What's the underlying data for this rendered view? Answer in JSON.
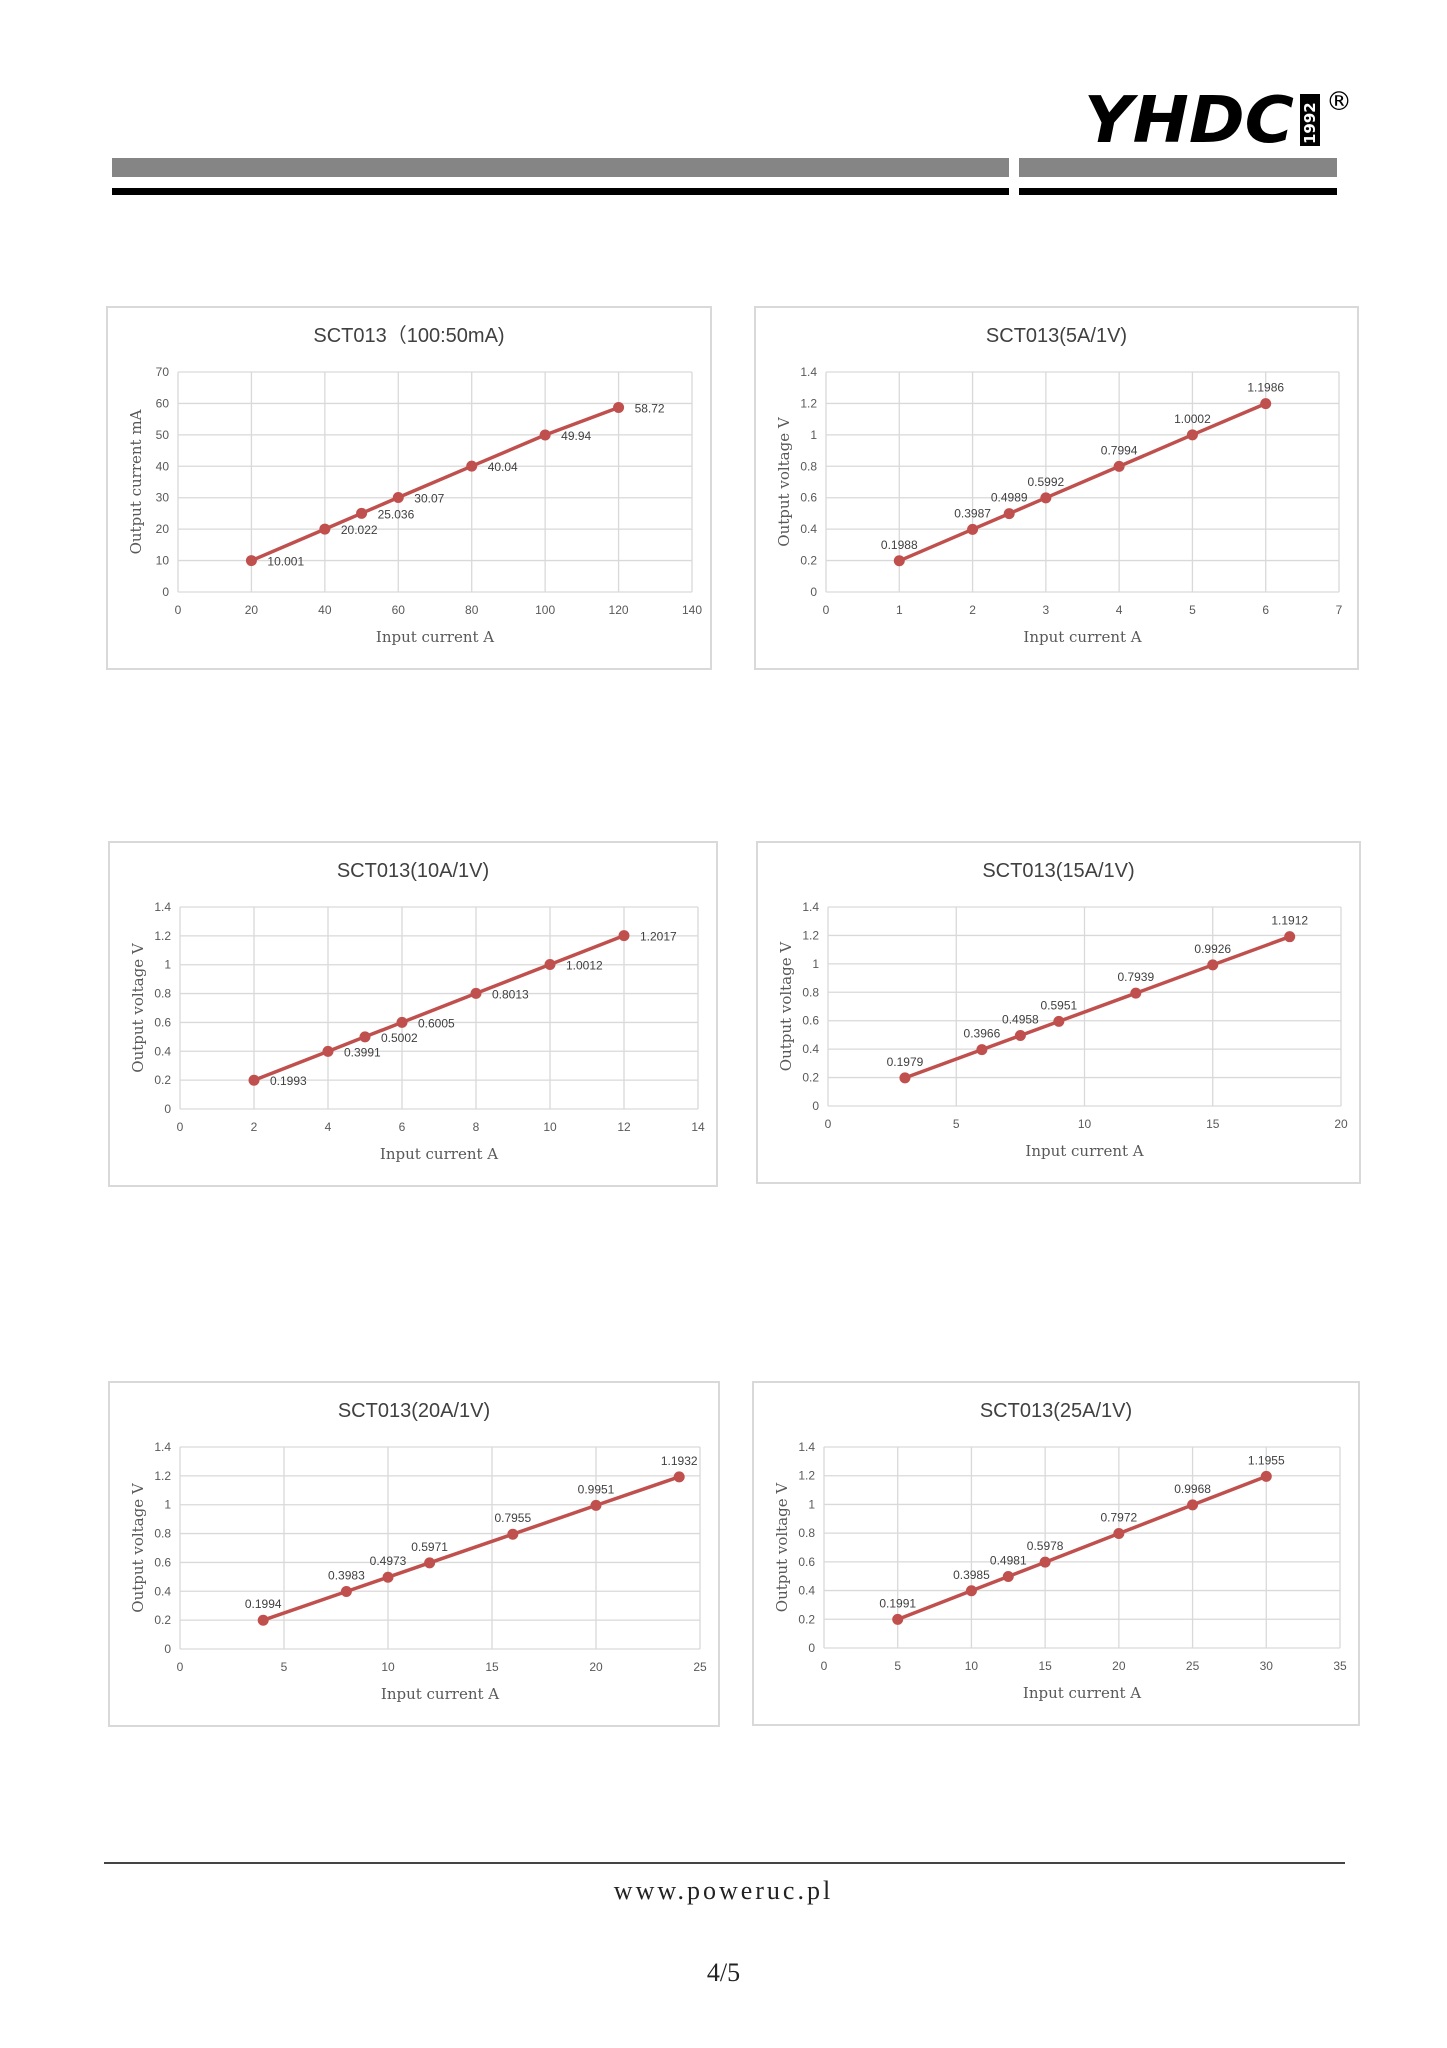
{
  "header": {
    "logo_text": "YHDC",
    "logo_year": "1992",
    "registered_mark": "®"
  },
  "footer": {
    "url": "www.poweruc.pl",
    "page": "4/5"
  },
  "colors": {
    "series": "#c0504d",
    "grid": "#d9d9d9",
    "axis_text": "#595959",
    "title_text": "#404040",
    "band_gray": "#858585",
    "band_black": "#000000"
  },
  "chart_data": [
    {
      "type": "line",
      "title": "SCT013（100:50mA)",
      "xlabel": "Input current  A",
      "ylabel": "Output current  mA",
      "xlim": [
        0,
        140
      ],
      "ylim": [
        0,
        70
      ],
      "xticks": [
        0,
        20,
        40,
        60,
        80,
        100,
        120,
        140
      ],
      "yticks": [
        0,
        10,
        20,
        30,
        40,
        50,
        60,
        70
      ],
      "grid": true,
      "x": [
        20,
        40,
        50,
        60,
        80,
        100,
        120
      ],
      "y": [
        10.001,
        20.022,
        25.036,
        30.07,
        40.04,
        49.94,
        58.72
      ],
      "data_labels": [
        "10.001",
        "20.022",
        "25.036",
        "30.07",
        "40.04",
        "49.94",
        "58.72"
      ],
      "label_position": "right"
    },
    {
      "type": "line",
      "title": "SCT013(5A/1V)",
      "xlabel": "Input current  A",
      "ylabel": "Output voltage  V",
      "xlim": [
        0,
        7
      ],
      "ylim": [
        0,
        1.4
      ],
      "xticks": [
        0,
        1,
        2,
        3,
        4,
        5,
        6,
        7
      ],
      "yticks": [
        0,
        0.2,
        0.4,
        0.6,
        0.8,
        1,
        1.2,
        1.4
      ],
      "grid": true,
      "x": [
        1,
        2,
        2.5,
        3,
        4,
        5,
        6
      ],
      "y": [
        0.1988,
        0.3987,
        0.4989,
        0.5992,
        0.7994,
        1.0002,
        1.1986
      ],
      "data_labels": [
        "0.1988",
        "0.3987",
        "0.4989",
        "0.5992",
        "0.7994",
        "1.0002",
        "1.1986"
      ],
      "label_position": "above"
    },
    {
      "type": "line",
      "title": "SCT013(10A/1V)",
      "xlabel": "Input current  A",
      "ylabel": "Output voltage  V",
      "xlim": [
        0,
        14
      ],
      "ylim": [
        0,
        1.4
      ],
      "xticks": [
        0,
        2,
        4,
        6,
        8,
        10,
        12,
        14
      ],
      "yticks": [
        0,
        0.2,
        0.4,
        0.6,
        0.8,
        1,
        1.2,
        1.4
      ],
      "grid": true,
      "x": [
        2,
        4,
        5,
        6,
        8,
        10,
        12
      ],
      "y": [
        0.1993,
        0.3991,
        0.5002,
        0.6005,
        0.8013,
        1.0012,
        1.2017
      ],
      "data_labels": [
        "0.1993",
        "0.3991",
        "0.5002",
        "0.6005",
        "0.8013",
        "1.0012",
        "1.2017"
      ],
      "label_position": "right"
    },
    {
      "type": "line",
      "title": "SCT013(15A/1V)",
      "xlabel": "Input current  A",
      "ylabel": "Output voltage  V",
      "xlim": [
        0,
        20
      ],
      "ylim": [
        0,
        1.4
      ],
      "xticks": [
        0,
        5,
        10,
        15,
        20
      ],
      "yticks": [
        0,
        0.2,
        0.4,
        0.6,
        0.8,
        1,
        1.2,
        1.4
      ],
      "grid": true,
      "x": [
        3,
        6,
        7.5,
        9,
        12,
        15,
        18
      ],
      "y": [
        0.1979,
        0.3966,
        0.4958,
        0.5951,
        0.7939,
        0.9926,
        1.1912
      ],
      "data_labels": [
        "0.1979",
        "0.3966",
        "0.4958",
        "0.5951",
        "0.7939",
        "0.9926",
        "1.1912"
      ],
      "label_position": "above"
    },
    {
      "type": "line",
      "title": "SCT013(20A/1V)",
      "xlabel": "Input current  A",
      "ylabel": "Output voltage  V",
      "xlim": [
        0,
        25
      ],
      "ylim": [
        0,
        1.4
      ],
      "xticks": [
        0,
        5,
        10,
        15,
        20,
        25
      ],
      "yticks": [
        0,
        0.2,
        0.4,
        0.6,
        0.8,
        1,
        1.2,
        1.4
      ],
      "grid": true,
      "x": [
        4,
        8,
        10,
        12,
        16,
        20,
        24
      ],
      "y": [
        0.1994,
        0.3983,
        0.4973,
        0.5971,
        0.7955,
        0.9951,
        1.1932
      ],
      "data_labels": [
        "0.1994",
        "0.3983",
        "0.4973",
        "0.5971",
        "0.7955",
        "0.9951",
        "1.1932"
      ],
      "label_position": "above"
    },
    {
      "type": "line",
      "title": "SCT013(25A/1V)",
      "xlabel": "Input current  A",
      "ylabel": "Output voltage  V",
      "xlim": [
        0,
        35
      ],
      "ylim": [
        0,
        1.4
      ],
      "xticks": [
        0,
        5,
        10,
        15,
        20,
        25,
        30,
        35
      ],
      "yticks": [
        0,
        0.2,
        0.4,
        0.6,
        0.8,
        1,
        1.2,
        1.4
      ],
      "grid": true,
      "x": [
        5,
        10,
        12.5,
        15,
        20,
        25,
        30
      ],
      "y": [
        0.1991,
        0.3985,
        0.4981,
        0.5978,
        0.7972,
        0.9968,
        1.1955
      ],
      "data_labels": [
        "0.1991",
        "0.3985",
        "0.4981",
        "0.5978",
        "0.7972",
        "0.9968",
        "1.1955"
      ],
      "label_position": "above"
    }
  ]
}
